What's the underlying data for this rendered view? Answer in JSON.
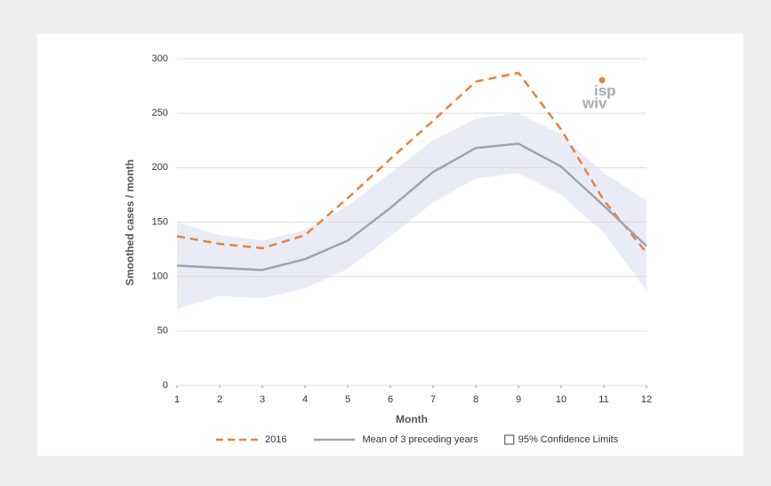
{
  "chart_data": {
    "type": "line",
    "x": [
      1,
      2,
      3,
      4,
      5,
      6,
      7,
      8,
      9,
      10,
      11,
      12
    ],
    "xlim": [
      1,
      12
    ],
    "xticks": [
      1,
      2,
      3,
      4,
      5,
      6,
      7,
      8,
      9,
      10,
      11,
      12
    ],
    "ylim": [
      0,
      300
    ],
    "yticks": [
      0,
      50,
      100,
      150,
      200,
      250,
      300
    ],
    "xlabel": "Month",
    "ylabel": "Smoothed cases / month",
    "grid": true,
    "series": [
      {
        "name": "2016",
        "color": "#e8823a",
        "dashed": true,
        "values": [
          137,
          130,
          126,
          138,
          172,
          208,
          243,
          279,
          287,
          235,
          170,
          122
        ]
      },
      {
        "name": "Mean of 3 preceding years",
        "color": "#a0a3ad",
        "values": [
          110,
          108,
          106,
          116,
          133,
          163,
          196,
          218,
          222,
          201,
          165,
          128
        ]
      }
    ],
    "band": {
      "name": "95% Confidence Limits",
      "color": "#e9ecf7",
      "upper": [
        150,
        138,
        133,
        143,
        165,
        195,
        225,
        245,
        250,
        230,
        195,
        170
      ],
      "lower": [
        70,
        82,
        80,
        89,
        107,
        137,
        168,
        190,
        195,
        175,
        140,
        87
      ]
    },
    "logo": {
      "line1": "isp",
      "line2": "wiv"
    }
  }
}
